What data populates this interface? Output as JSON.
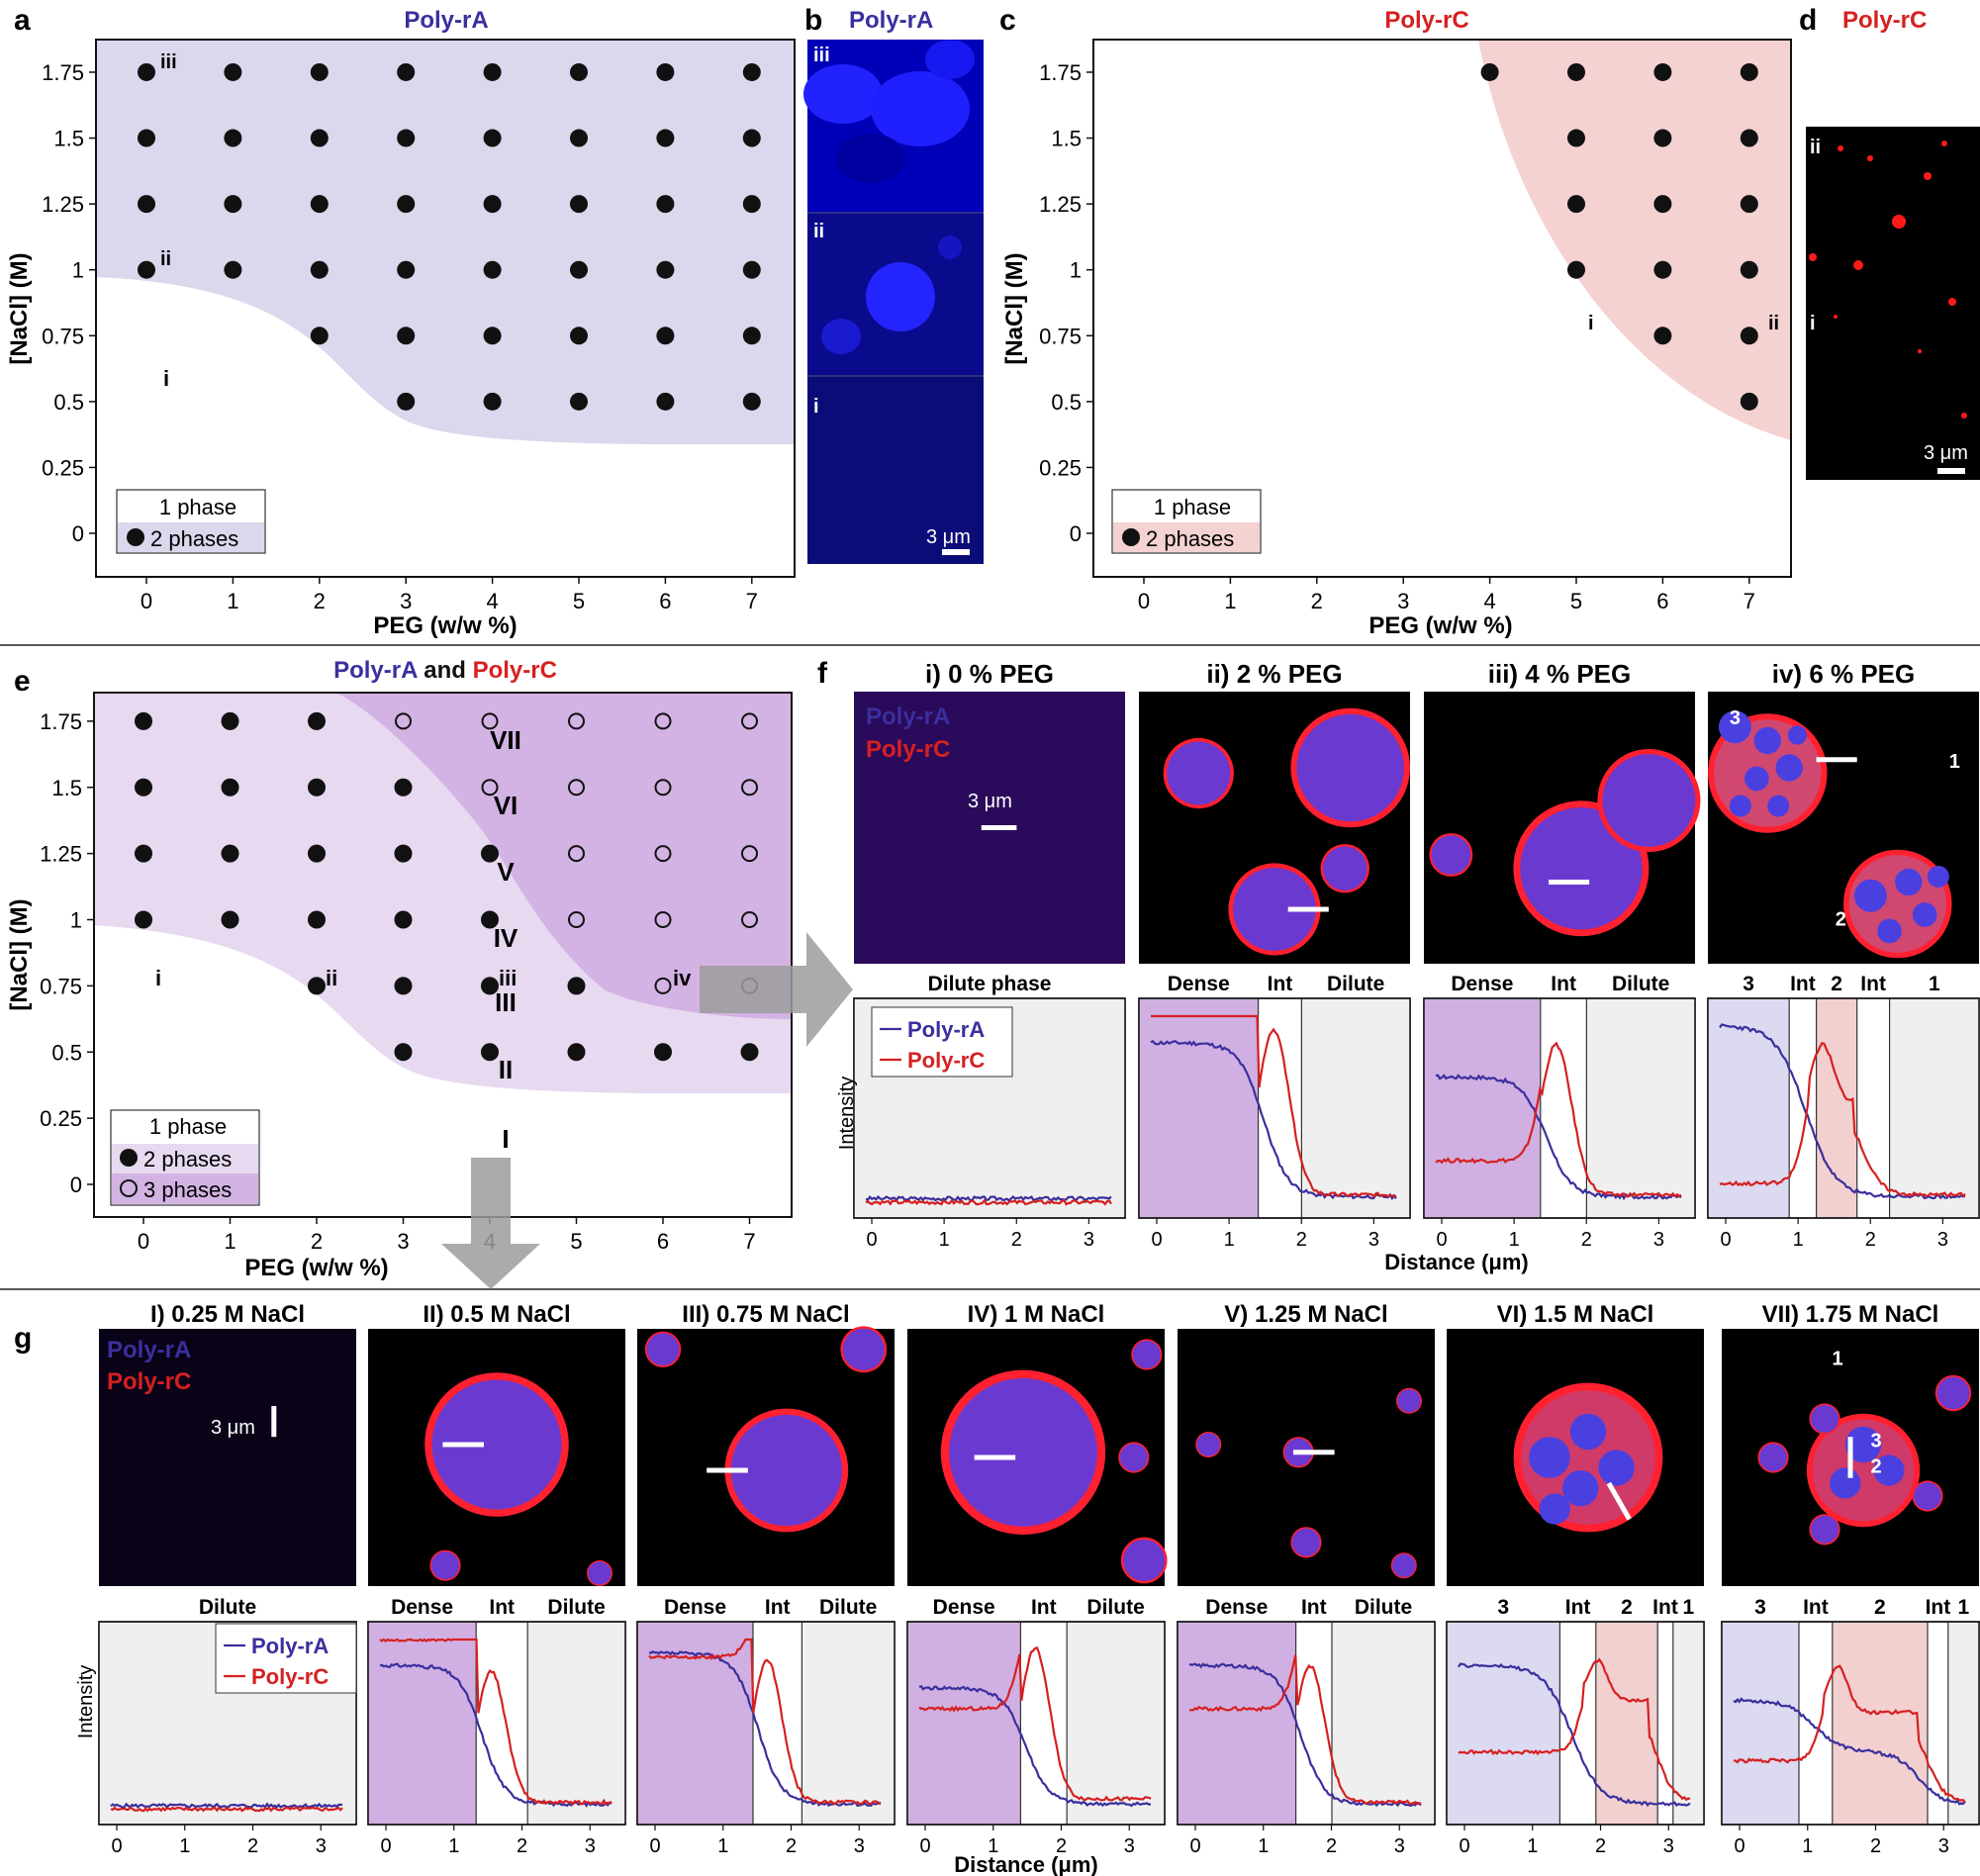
{
  "colors": {
    "rA": "#3a2f9e",
    "rC": "#d62020",
    "rA_fill": "#d9d8ec",
    "rC_fill": "#f4d2d2",
    "e_light": "#e6d9f0",
    "e_dark": "#d3b3e3",
    "dense_band": "#d0b0e2",
    "band3": "#dcdaf0",
    "int2": "#f2d0d0",
    "dilute_band": "#efefef"
  },
  "panels": {
    "a": {
      "letter": "a",
      "title": "Poly-rA"
    },
    "b": {
      "letter": "b",
      "title": "Poly-rA",
      "roman": [
        "iii",
        "ii",
        "i"
      ],
      "scale": "3 μm"
    },
    "c": {
      "letter": "c",
      "title": "Poly-rC"
    },
    "d": {
      "letter": "d",
      "title": "Poly-rC",
      "roman": [
        "ii",
        "i"
      ],
      "scale": "3 μm"
    },
    "e": {
      "letter": "e",
      "title_a": "Poly-rA",
      "title_and": " and ",
      "title_c": "Poly-rC"
    },
    "f": {
      "letter": "f"
    },
    "g": {
      "letter": "g"
    }
  },
  "axes": {
    "xlabel": "PEG (w/w %)",
    "ylabel": "[NaCl] (M)",
    "xticks": [
      "0",
      "1",
      "2",
      "3",
      "4",
      "5",
      "6",
      "7"
    ],
    "yticks": [
      "0",
      "0.25",
      "0.5",
      "0.75",
      "1",
      "1.25",
      "1.5",
      "1.75"
    ],
    "intensity": "Intensity",
    "distance": "Distance (μm)"
  },
  "legend": {
    "one": "1 phase",
    "two": "2 phases",
    "three": "3 phases"
  },
  "labels": {
    "a_i": "i",
    "a_ii": "ii",
    "a_iii": "iii",
    "c_i": "i",
    "c_ii": "ii",
    "e_i": "i",
    "e_ii": "ii",
    "e_iii": "iii",
    "e_iv": "iv",
    "roman_big": [
      "I",
      "II",
      "III",
      "IV",
      "V",
      "VI",
      "VII"
    ],
    "polyrA": "Poly-rA",
    "polyrC": "Poly-rC",
    "scale": "3 μm"
  },
  "f_panels": [
    {
      "title": "i) 0 % PEG",
      "regions": [
        "Dilute phase"
      ]
    },
    {
      "title": "ii) 2 % PEG",
      "regions": [
        "Dense",
        "Int",
        "Dilute"
      ],
      "xticks": [
        "0",
        "1",
        "2",
        "3"
      ]
    },
    {
      "title": "iii) 4 % PEG",
      "regions": [
        "Dense",
        "Int",
        "Dilute"
      ],
      "xticks": [
        "0",
        "1",
        "2",
        "3"
      ]
    },
    {
      "title": "iv) 6 % PEG",
      "regions": [
        "3",
        "Int",
        "2",
        "Int",
        "1"
      ],
      "xticks": [
        "0",
        "1",
        "2",
        "3"
      ],
      "droplet_labels": [
        "3",
        "1",
        "2"
      ]
    }
  ],
  "g_panels": [
    {
      "title": "I) 0.25 M NaCl",
      "regions": [
        "Dilute"
      ]
    },
    {
      "title": "II) 0.5 M NaCl",
      "regions": [
        "Dense",
        "Int",
        "Dilute"
      ]
    },
    {
      "title": "III) 0.75 M NaCl",
      "regions": [
        "Dense",
        "Int",
        "Dilute"
      ]
    },
    {
      "title": "IV) 1 M NaCl",
      "regions": [
        "Dense",
        "Int",
        "Dilute"
      ]
    },
    {
      "title": "V) 1.25 M NaCl",
      "regions": [
        "Dense",
        "Int",
        "Dilute"
      ]
    },
    {
      "title": "VI) 1.5 M NaCl",
      "regions": [
        "3",
        "Int",
        "2",
        "Int",
        "1"
      ]
    },
    {
      "title": "VII) 1.75 M NaCl",
      "regions": [
        "3",
        "Int",
        "2",
        "Int",
        "1"
      ],
      "droplet_labels": [
        "1",
        "3",
        "2"
      ]
    }
  ],
  "chart_data": [
    {
      "type": "scatter",
      "title": "Poly-rA",
      "xlabel": "PEG (w/w %)",
      "ylabel": "[NaCl] (M)",
      "xlim": [
        -0.3,
        7.2
      ],
      "ylim": [
        -0.2,
        1.85
      ],
      "series": [
        {
          "name": "2 phases",
          "points": [
            [
              0,
              1.75
            ],
            [
              1,
              1.75
            ],
            [
              2,
              1.75
            ],
            [
              3,
              1.75
            ],
            [
              4,
              1.75
            ],
            [
              5,
              1.75
            ],
            [
              6,
              1.75
            ],
            [
              7,
              1.75
            ],
            [
              0,
              1.5
            ],
            [
              1,
              1.5
            ],
            [
              2,
              1.5
            ],
            [
              3,
              1.5
            ],
            [
              4,
              1.5
            ],
            [
              5,
              1.5
            ],
            [
              6,
              1.5
            ],
            [
              7,
              1.5
            ],
            [
              0,
              1.25
            ],
            [
              1,
              1.25
            ],
            [
              2,
              1.25
            ],
            [
              3,
              1.25
            ],
            [
              4,
              1.25
            ],
            [
              5,
              1.25
            ],
            [
              6,
              1.25
            ],
            [
              7,
              1.25
            ],
            [
              0,
              1
            ],
            [
              1,
              1
            ],
            [
              2,
              1
            ],
            [
              3,
              1
            ],
            [
              4,
              1
            ],
            [
              5,
              1
            ],
            [
              6,
              1
            ],
            [
              7,
              1
            ],
            [
              2,
              0.75
            ],
            [
              3,
              0.75
            ],
            [
              4,
              0.75
            ],
            [
              5,
              0.75
            ],
            [
              6,
              0.75
            ],
            [
              7,
              0.75
            ],
            [
              3,
              0.5
            ],
            [
              4,
              0.5
            ],
            [
              5,
              0.5
            ],
            [
              6,
              0.5
            ],
            [
              7,
              0.5
            ]
          ]
        }
      ]
    },
    {
      "type": "scatter",
      "title": "Poly-rC",
      "xlabel": "PEG (w/w %)",
      "ylabel": "[NaCl] (M)",
      "xlim": [
        -0.3,
        7.2
      ],
      "ylim": [
        -0.2,
        1.85
      ],
      "series": [
        {
          "name": "2 phases",
          "points": [
            [
              4,
              1.75
            ],
            [
              5,
              1.75
            ],
            [
              6,
              1.75
            ],
            [
              7,
              1.75
            ],
            [
              5,
              1.5
            ],
            [
              6,
              1.5
            ],
            [
              7,
              1.5
            ],
            [
              5,
              1.25
            ],
            [
              6,
              1.25
            ],
            [
              7,
              1.25
            ],
            [
              5,
              1
            ],
            [
              6,
              1
            ],
            [
              7,
              1
            ],
            [
              6,
              0.75
            ],
            [
              7,
              0.75
            ],
            [
              7,
              0.5
            ]
          ]
        }
      ]
    },
    {
      "type": "scatter",
      "title": "Poly-rA and Poly-rC",
      "xlabel": "PEG (w/w %)",
      "ylabel": "[NaCl] (M)",
      "xlim": [
        -0.3,
        7.2
      ],
      "ylim": [
        -0.2,
        1.85
      ],
      "series": [
        {
          "name": "2 phases",
          "points": [
            [
              0,
              1.75
            ],
            [
              1,
              1.75
            ],
            [
              2,
              1.75
            ],
            [
              0,
              1.5
            ],
            [
              1,
              1.5
            ],
            [
              2,
              1.5
            ],
            [
              3,
              1.5
            ],
            [
              0,
              1.25
            ],
            [
              1,
              1.25
            ],
            [
              2,
              1.25
            ],
            [
              3,
              1.25
            ],
            [
              4,
              1.25
            ],
            [
              0,
              1
            ],
            [
              1,
              1
            ],
            [
              2,
              1
            ],
            [
              3,
              1
            ],
            [
              4,
              1
            ],
            [
              2,
              0.75
            ],
            [
              3,
              0.75
            ],
            [
              4,
              0.75
            ],
            [
              5,
              0.75
            ],
            [
              3,
              0.5
            ],
            [
              4,
              0.5
            ],
            [
              5,
              0.5
            ],
            [
              6,
              0.5
            ],
            [
              7,
              0.5
            ]
          ]
        },
        {
          "name": "3 phases",
          "points": [
            [
              3,
              1.75
            ],
            [
              4,
              1.75
            ],
            [
              5,
              1.75
            ],
            [
              6,
              1.75
            ],
            [
              7,
              1.75
            ],
            [
              4,
              1.5
            ],
            [
              5,
              1.5
            ],
            [
              6,
              1.5
            ],
            [
              7,
              1.5
            ],
            [
              5,
              1.25
            ],
            [
              6,
              1.25
            ],
            [
              7,
              1.25
            ],
            [
              5,
              1
            ],
            [
              6,
              1
            ],
            [
              7,
              1
            ],
            [
              6,
              0.75
            ],
            [
              7,
              0.75
            ]
          ]
        }
      ]
    }
  ]
}
